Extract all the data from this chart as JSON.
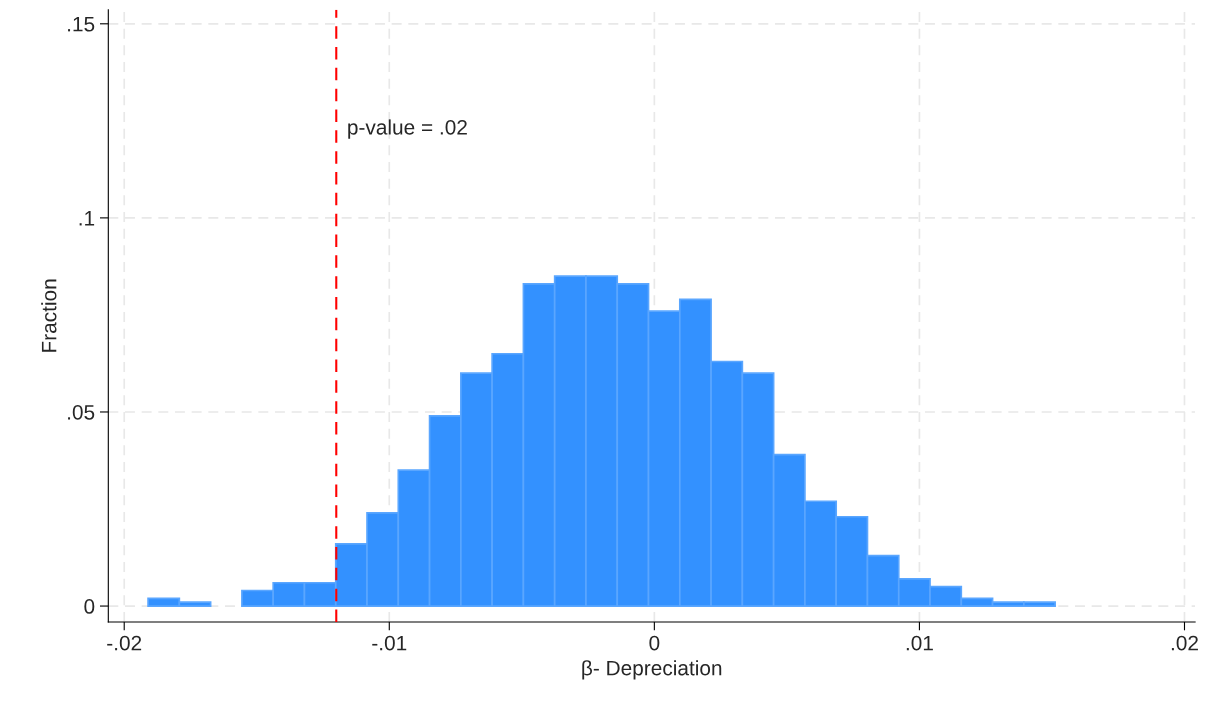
{
  "chart_data": {
    "type": "histogram",
    "xlabel": "β- Depreciation",
    "ylabel": "Fraction",
    "bins": [
      -0.0191,
      -0.01792,
      -0.01674,
      -0.01556,
      -0.01438,
      -0.0132,
      -0.01202,
      -0.01084,
      -0.00966,
      -0.00848,
      -0.0073,
      -0.00612,
      -0.00494,
      -0.00376,
      -0.00258,
      -0.0014,
      -0.00022,
      0.00096,
      0.00214,
      0.00332,
      0.0045,
      0.00568,
      0.00686,
      0.00804,
      0.00922,
      0.0104,
      0.01158,
      0.01276,
      0.01394,
      0.01512
    ],
    "values": [
      0.002,
      0.001,
      0,
      0.004,
      0.006,
      0.006,
      0.016,
      0.024,
      0.035,
      0.049,
      0.06,
      0.065,
      0.083,
      0.085,
      0.085,
      0.083,
      0.076,
      0.079,
      0.063,
      0.06,
      0.039,
      0.027,
      0.023,
      0.013,
      0.007,
      0.005,
      0.002,
      0.001,
      0.001
    ],
    "color": "#3391ff",
    "xlim": [
      -0.0206,
      0.0204
    ],
    "ylim": [
      -0.0041,
      0.1536
    ],
    "xticks": [
      {
        "value": -0.02,
        "label": "-.02"
      },
      {
        "value": -0.01,
        "label": "-.01"
      },
      0,
      {
        "value": 0.01,
        "label": ".01"
      },
      {
        "value": 0.02,
        "label": ".02"
      }
    ],
    "yticks": [
      0,
      {
        "value": 0.05,
        "label": ".05"
      },
      {
        "value": 0.1,
        "label": ".1"
      },
      {
        "value": 0.15,
        "label": ".15"
      }
    ],
    "grid": true,
    "ref_lines": [
      {
        "axis": "x",
        "value": -0.012,
        "label": "p-value = .02",
        "color": "#ff0000",
        "line_style": "dashed"
      }
    ]
  }
}
